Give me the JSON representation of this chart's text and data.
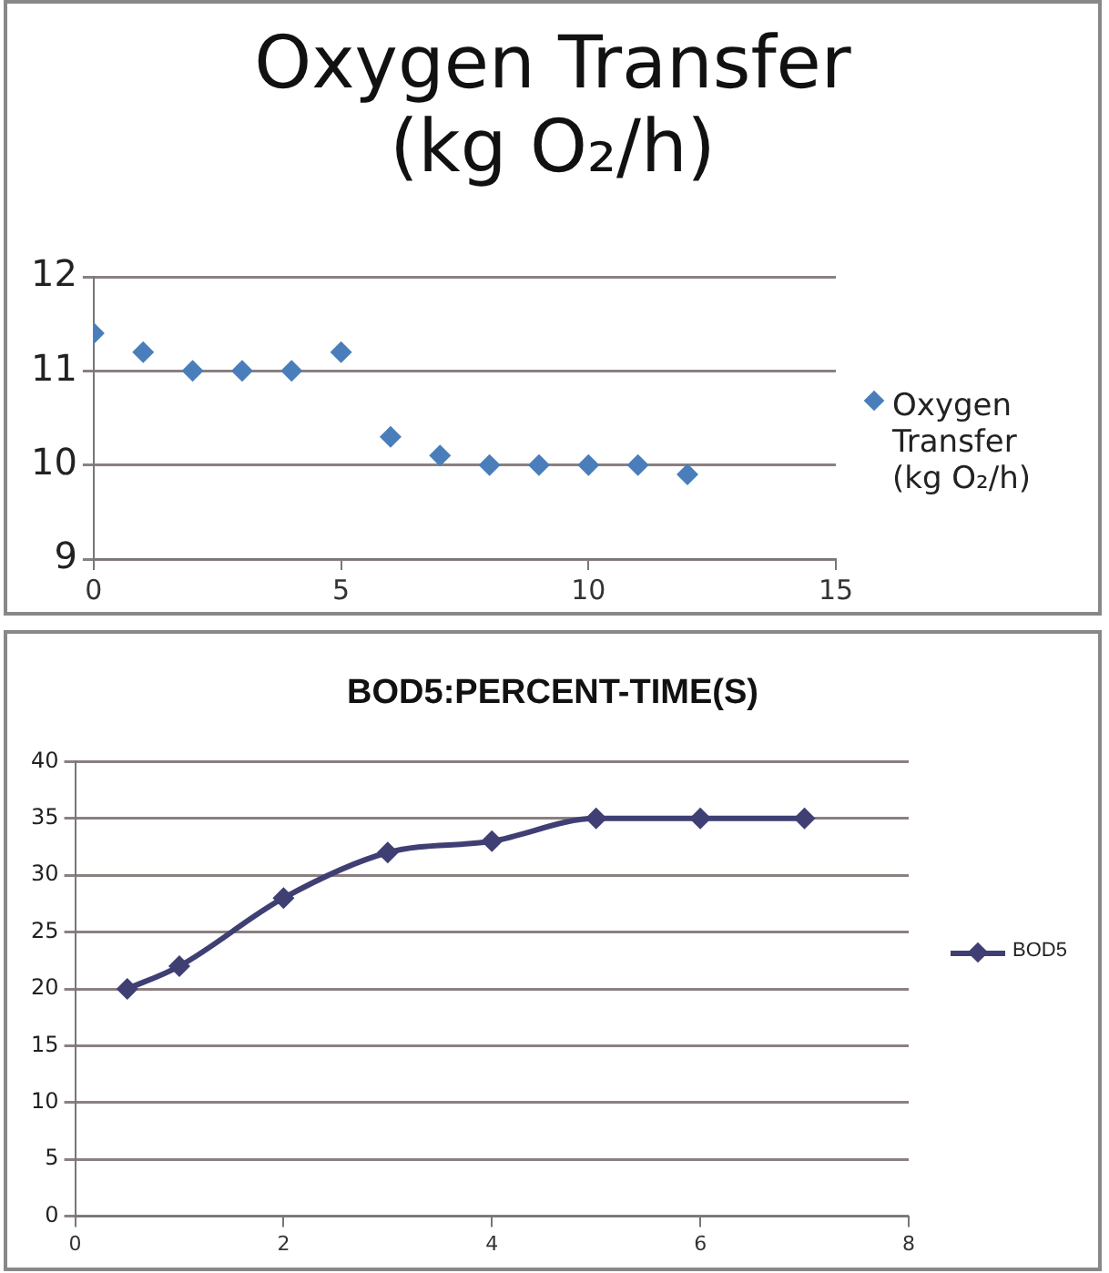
{
  "chart_data": [
    {
      "type": "scatter",
      "title": "Oxygen Transfer (kg O₂/h)",
      "x": [
        0,
        1,
        2,
        3,
        4,
        5,
        6,
        7,
        8,
        9,
        10,
        11,
        12
      ],
      "series": [
        {
          "name": "Oxygen Transfer (kg O₂/h)",
          "color": "#4a7ebb",
          "values": [
            11.4,
            11.2,
            11,
            11,
            11,
            11.2,
            10.3,
            10.1,
            10,
            10,
            10,
            10,
            9.9
          ]
        }
      ],
      "xlim": [
        0,
        15
      ],
      "xticks": [
        0,
        5,
        10,
        15
      ],
      "ylim": [
        9,
        12
      ],
      "yticks": [
        9,
        10,
        11,
        12
      ],
      "grid": "y",
      "legend": "right",
      "marker": "diamond"
    },
    {
      "type": "line",
      "title": "BOD5:PERCENT-TIME(S)",
      "x": [
        0.5,
        1,
        2,
        3,
        4,
        5,
        6,
        7
      ],
      "series": [
        {
          "name": "BOD5",
          "color": "#3f3f74",
          "values": [
            20,
            22,
            28,
            32,
            33,
            35,
            35,
            35
          ]
        }
      ],
      "xlim": [
        0,
        8
      ],
      "xticks": [
        0,
        2,
        4,
        6,
        8
      ],
      "ylim": [
        0,
        40
      ],
      "yticks": [
        0,
        5,
        10,
        15,
        20,
        25,
        30,
        35,
        40
      ],
      "grid": "y",
      "legend": "right",
      "marker": "diamond",
      "line_style": "solid"
    }
  ]
}
